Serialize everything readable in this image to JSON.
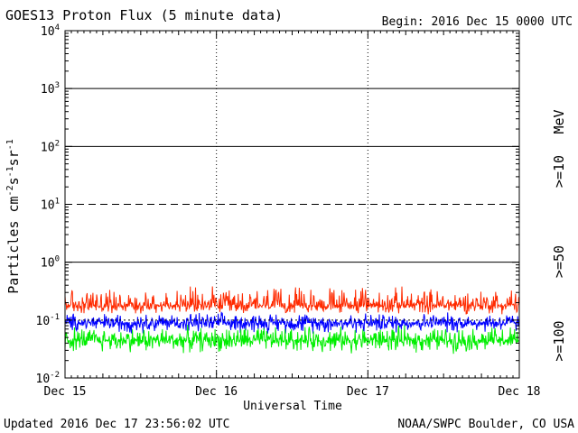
{
  "header": {
    "title": "GOES13 Proton Flux (5 minute data)",
    "begin": "Begin: 2016 Dec 15 0000 UTC"
  },
  "footer": {
    "updated": "Updated 2016 Dec 17 23:56:02 UTC",
    "credit": "NOAA/SWPC Boulder, CO USA"
  },
  "colors": {
    "ge10": "#ff2a00",
    "ge50": "#0000ff",
    "ge100": "#00ee00",
    "axis": "#000000"
  },
  "chart_data": {
    "type": "line",
    "title": "GOES13 Proton Flux (5 minute data)",
    "xlabel": "Universal Time",
    "ylabel_parts": [
      "Particles cm",
      "-2",
      "s",
      "-1",
      "sr",
      "-1"
    ],
    "y_scale": "log",
    "ylim": [
      0.01,
      10000
    ],
    "y_ticks": [
      {
        "base": "10",
        "exp": "-2"
      },
      {
        "base": "10",
        "exp": "-1"
      },
      {
        "base": "10",
        "exp": "0"
      },
      {
        "base": "10",
        "exp": "1"
      },
      {
        "base": "10",
        "exp": "2"
      },
      {
        "base": "10",
        "exp": "3"
      },
      {
        "base": "10",
        "exp": "4"
      }
    ],
    "x_ticks": [
      "Dec 15",
      "Dec 16",
      "Dec 17",
      "Dec 18"
    ],
    "xlim_days": [
      0,
      3
    ],
    "unit_label": "MeV",
    "threshold_lines": [
      {
        "value": 10,
        "style": "dashed"
      },
      {
        "value": 1,
        "style": "solid"
      },
      {
        "value": 0.1,
        "style": "dotted"
      }
    ],
    "series": [
      {
        "name": ">=10",
        "color": "#ff2a00",
        "typical": 0.18,
        "range": [
          0.12,
          0.45
        ]
      },
      {
        "name": ">=50",
        "color": "#0000ff",
        "typical": 0.09,
        "range": [
          0.055,
          0.15
        ]
      },
      {
        "name": ">=100",
        "color": "#00ee00",
        "typical": 0.045,
        "range": [
          0.025,
          0.09
        ]
      }
    ],
    "points_per_series": 864
  }
}
